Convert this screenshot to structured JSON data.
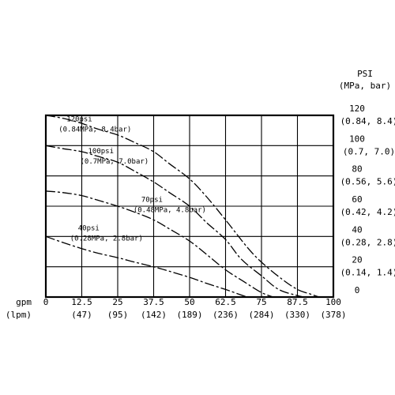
{
  "chart_data": {
    "type": "line",
    "xlabel": "gpm",
    "xlabel_secondary": "(lpm)",
    "ylabel": "PSI",
    "ylabel_secondary": "(MPa, bar)",
    "xlim": [
      0,
      100
    ],
    "ylim": [
      0,
      120
    ],
    "grid": true,
    "x_ticks": [
      {
        "value": 0,
        "label": "0",
        "sub": ""
      },
      {
        "value": 12.5,
        "label": "12.5",
        "sub": "(47)"
      },
      {
        "value": 25,
        "label": "25",
        "sub": "(95)"
      },
      {
        "value": 37.5,
        "label": "37.5",
        "sub": "(142)"
      },
      {
        "value": 50,
        "label": "50",
        "sub": "(189)"
      },
      {
        "value": 62.5,
        "label": "62.5",
        "sub": "(236)"
      },
      {
        "value": 75,
        "label": "75",
        "sub": "(284)"
      },
      {
        "value": 87.5,
        "label": "87.5",
        "sub": "(330)"
      },
      {
        "value": 100,
        "label": "100",
        "sub": "(378)"
      }
    ],
    "y_ticks": [
      {
        "value": 0,
        "label": "0",
        "sub": ""
      },
      {
        "value": 20,
        "label": "20",
        "sub": "(0.14, 1.4)"
      },
      {
        "value": 40,
        "label": "40",
        "sub": "(0.28, 2.8)"
      },
      {
        "value": 60,
        "label": "60",
        "sub": "(0.42, 4.2)"
      },
      {
        "value": 80,
        "label": "80",
        "sub": "(0.56, 5.6)"
      },
      {
        "value": 100,
        "label": "100",
        "sub": "(0.7, 7.0)"
      },
      {
        "value": 120,
        "label": "120",
        "sub": "(0.84, 8.4)"
      }
    ],
    "series": [
      {
        "annotation": "120psi",
        "annotation_sub": "(0.84MPa, 8.4bar)",
        "dash": "long-short",
        "x": [
          0,
          6,
          12,
          18,
          25,
          31,
          37.5,
          43,
          50,
          56,
          62.5,
          70,
          75,
          82,
          87.5,
          92,
          95
        ],
        "y": [
          120,
          118,
          115,
          111,
          107,
          102,
          96,
          88,
          78,
          66,
          51,
          33,
          23,
          12,
          5,
          2,
          0
        ]
      },
      {
        "annotation": "100psi",
        "annotation_sub": "(0.7MPa, 7.0bar)",
        "dash": "long-short",
        "x": [
          0,
          6,
          12.5,
          18,
          25,
          31,
          37.5,
          43,
          50,
          56,
          62.5,
          68,
          75,
          81,
          87.5,
          90
        ],
        "y": [
          100,
          98,
          96,
          93,
          89,
          83,
          76,
          69,
          60,
          49,
          38,
          25,
          14,
          5,
          1,
          0
        ]
      },
      {
        "annotation": "70psi",
        "annotation_sub": "(0.48MPa, 4.8bar)",
        "dash": "long-short",
        "x": [
          0,
          6,
          12.5,
          18,
          25,
          31,
          37.5,
          43,
          50,
          56,
          62.5,
          69,
          75,
          79
        ],
        "y": [
          70,
          69,
          67,
          64,
          60,
          56,
          51,
          45,
          37,
          28,
          18,
          10,
          3,
          0
        ]
      },
      {
        "annotation": "40psi",
        "annotation_sub": "(0.28MPa, 2.8bar)",
        "dash": "long-short",
        "x": [
          0,
          6,
          12.5,
          18,
          25,
          31,
          37.5,
          43,
          50,
          56,
          62.5,
          67,
          70
        ],
        "y": [
          40,
          36,
          32,
          29,
          26,
          23,
          20,
          17,
          13,
          9,
          5,
          2,
          0
        ]
      }
    ]
  }
}
